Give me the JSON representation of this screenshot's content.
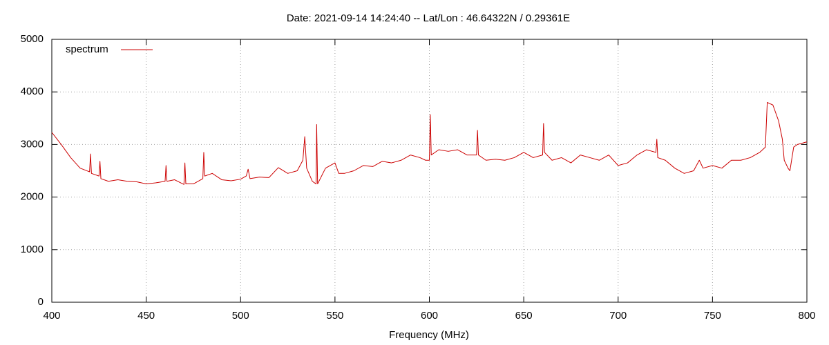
{
  "chart_data": {
    "type": "line",
    "title": "Date: 2021-09-14 14:24:40  --  Lat/Lon : 46.64322N / 0.29361E",
    "x_label": "Frequency (MHz)",
    "xlim": [
      400,
      800
    ],
    "ylim": [
      0,
      5000
    ],
    "xticks": [
      400,
      450,
      500,
      550,
      600,
      650,
      700,
      750,
      800
    ],
    "yticks": [
      0,
      1000,
      2000,
      3000,
      4000,
      5000
    ],
    "grid": true,
    "legend": "top-left",
    "x": [
      400,
      405,
      410,
      415,
      420,
      420.5,
      421,
      425,
      425.5,
      426,
      430,
      435,
      440,
      445,
      450,
      455,
      460,
      460.5,
      461,
      465,
      470,
      470.5,
      471,
      475,
      480,
      480.5,
      481,
      485,
      490,
      495,
      500,
      503,
      504,
      505,
      510,
      515,
      520,
      525,
      530,
      533,
      534,
      535,
      538,
      540,
      540.3,
      540.8,
      545,
      550,
      552,
      555,
      560,
      565,
      570,
      575,
      580,
      585,
      590,
      595,
      598,
      600,
      600.5,
      601,
      605,
      610,
      615,
      620,
      625,
      625.5,
      626,
      630,
      635,
      640,
      645,
      650,
      655,
      660,
      660.5,
      661,
      665,
      670,
      675,
      680,
      685,
      690,
      695,
      700,
      705,
      710,
      715,
      720,
      720.5,
      721,
      725,
      730,
      735,
      740,
      743,
      745,
      750,
      755,
      760,
      765,
      770,
      775,
      778,
      779,
      782,
      785,
      787,
      788,
      790,
      791,
      793,
      795,
      800
    ],
    "series": [
      {
        "name": "spectrum",
        "color": "#cc0000",
        "values": [
          3230,
          3000,
          2750,
          2550,
          2480,
          2820,
          2450,
          2400,
          2680,
          2350,
          2300,
          2330,
          2300,
          2290,
          2250,
          2270,
          2300,
          2600,
          2300,
          2330,
          2240,
          2650,
          2250,
          2250,
          2350,
          2850,
          2400,
          2450,
          2330,
          2310,
          2340,
          2400,
          2530,
          2350,
          2380,
          2370,
          2560,
          2450,
          2500,
          2700,
          3150,
          2550,
          2300,
          2250,
          3380,
          2250,
          2550,
          2650,
          2450,
          2450,
          2500,
          2600,
          2580,
          2680,
          2650,
          2700,
          2800,
          2750,
          2700,
          2700,
          3570,
          2800,
          2900,
          2870,
          2900,
          2800,
          2800,
          3270,
          2800,
          2700,
          2720,
          2700,
          2750,
          2850,
          2750,
          2800,
          3400,
          2850,
          2700,
          2750,
          2650,
          2800,
          2750,
          2700,
          2800,
          2600,
          2650,
          2800,
          2900,
          2850,
          3100,
          2750,
          2700,
          2550,
          2450,
          2500,
          2700,
          2550,
          2600,
          2550,
          2700,
          2700,
          2750,
          2850,
          2950,
          3800,
          3750,
          3450,
          3100,
          2700,
          2550,
          2500,
          2950,
          3000,
          3050
        ]
      }
    ]
  }
}
